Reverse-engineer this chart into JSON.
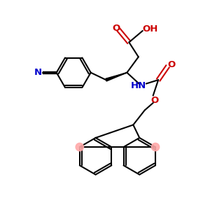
{
  "background_color": "#ffffff",
  "black": "#000000",
  "red": "#cc0000",
  "blue": "#0000cc",
  "highlight": "#ffaaaa",
  "lw": 1.5,
  "fs": 9.0,
  "xlim": [
    0,
    10
  ],
  "ylim": [
    0,
    10
  ]
}
